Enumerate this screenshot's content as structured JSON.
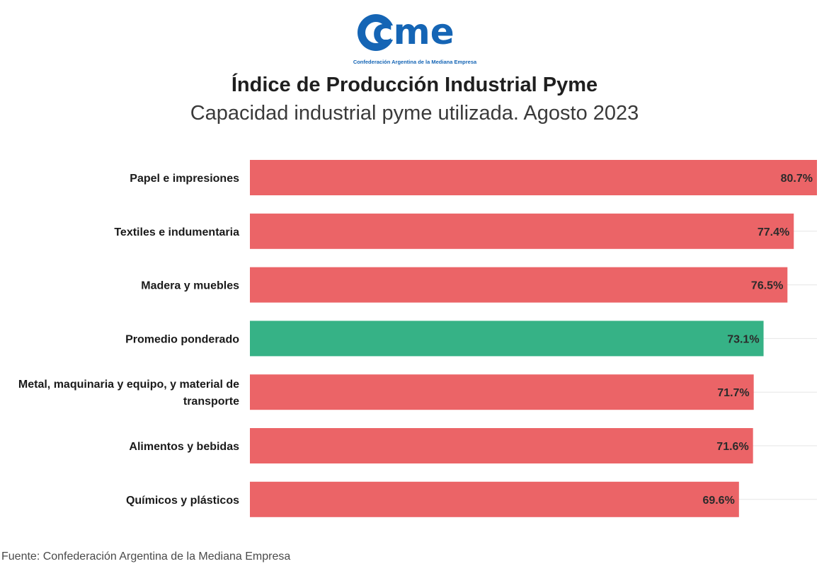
{
  "logo": {
    "text": "cme",
    "caption": "Confederación Argentina de la Mediana Empresa"
  },
  "colors": {
    "bar": "#eb6467",
    "highlight": "#36b286",
    "brand": "#1565b5",
    "grid": "#e6e6e6"
  },
  "chart_data": {
    "type": "bar",
    "orientation": "horizontal",
    "title": "Índice de Producción Industrial Pyme",
    "subtitle": "Capacidad industrial pyme utilizada. Agosto 2023",
    "categories": [
      "Papel e impresiones",
      "Textiles e indumentaria",
      "Madera y muebles",
      "Promedio ponderado",
      "Metal, maquinaria y equipo, y material de transporte",
      "Alimentos y bebidas",
      "Químicos y plásticos"
    ],
    "values": [
      80.7,
      77.4,
      76.5,
      73.1,
      71.7,
      71.6,
      69.6
    ],
    "value_labels": [
      "80.7%",
      "77.4%",
      "76.5%",
      "73.1%",
      "71.7%",
      "71.6%",
      "69.6%"
    ],
    "highlight_category": "Promedio ponderado",
    "xlim": [
      0,
      80.7
    ],
    "xlabel": "",
    "ylabel": ""
  },
  "footer": {
    "source": "Fuente: Confederación Argentina de la Mediana Empresa"
  }
}
